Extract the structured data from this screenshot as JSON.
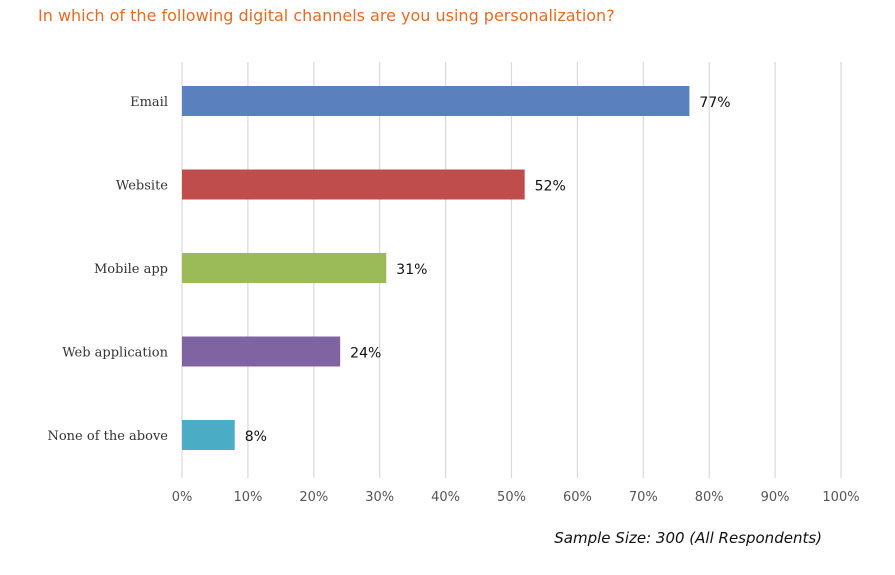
{
  "chart_data": {
    "type": "bar",
    "orientation": "horizontal",
    "title": "In which of the following digital channels are you using personalization?",
    "categories": [
      "Email",
      "Website",
      "Mobile app",
      "Web application",
      "None of the above"
    ],
    "values": [
      77,
      52,
      31,
      24,
      8
    ],
    "data_labels": [
      "77%",
      "52%",
      "31%",
      "24%",
      "8%"
    ],
    "colors": [
      "#5B80BE",
      "#BE4D4C",
      "#9BBB59",
      "#8064A2",
      "#4BACC6"
    ],
    "xlabel": "",
    "ylabel": "",
    "xlim": [
      0,
      100
    ],
    "x_ticks": [
      "0%",
      "10%",
      "20%",
      "30%",
      "40%",
      "50%",
      "60%",
      "70%",
      "80%",
      "90%",
      "100%"
    ],
    "grid": "vertical",
    "legend": "none",
    "note": "Sample Size: 300 (All Respondents)"
  }
}
